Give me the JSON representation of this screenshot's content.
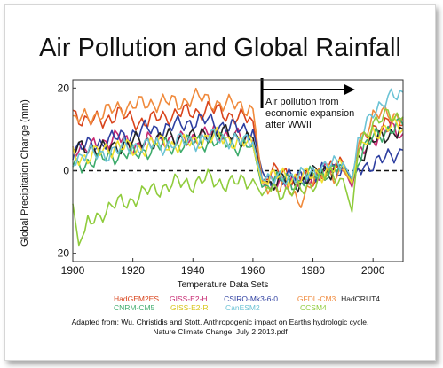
{
  "title": "Air Pollution and Global Rainfall",
  "chart_data": {
    "type": "line",
    "xlabel": "Temperature Data Sets",
    "ylabel": "Global Precipitation Change (mm)",
    "xlim": [
      1900,
      2010
    ],
    "ylim": [
      -22,
      22
    ],
    "xticks": [
      1900,
      1920,
      1940,
      1960,
      1980,
      2000
    ],
    "yticks": [
      -20,
      0,
      20
    ],
    "zero_line": "dashed",
    "legend_position": "bottom",
    "annotation": {
      "text_lines": [
        "Air pollution from",
        "economic expansion",
        "after WWII"
      ],
      "start_year": 1963,
      "end_year": 1994
    },
    "series": [
      {
        "name": "HadGEM2ES",
        "color": "#d9441c",
        "x": [
          1900,
          1905,
          1910,
          1915,
          1920,
          1925,
          1930,
          1935,
          1940,
          1945,
          1950,
          1955,
          1960,
          1963,
          1965,
          1970,
          1975,
          1980,
          1985,
          1990,
          1993,
          1995,
          2000,
          2005,
          2010
        ],
        "y": [
          14,
          12,
          12,
          14,
          12,
          12,
          13,
          14,
          14,
          15,
          14,
          13,
          12,
          -3,
          -1,
          0,
          -2,
          -2,
          0,
          2,
          -3,
          5,
          10,
          12,
          11
        ]
      },
      {
        "name": "GISS-E2-H",
        "color": "#c62870",
        "x": [
          1900,
          1905,
          1910,
          1915,
          1920,
          1925,
          1930,
          1935,
          1940,
          1945,
          1950,
          1955,
          1960,
          1963,
          1965,
          1970,
          1975,
          1980,
          1985,
          1990,
          1993,
          1995,
          2000,
          2005,
          2010
        ],
        "y": [
          6,
          5,
          7,
          8,
          6,
          7,
          8,
          7,
          8,
          9,
          9,
          8,
          7,
          -3,
          -4,
          -2,
          -3,
          -1,
          0,
          1,
          -4,
          3,
          8,
          10,
          9
        ]
      },
      {
        "name": "CSIRO-Mk3-6-0",
        "color": "#2e3fa0",
        "x": [
          1900,
          1905,
          1910,
          1915,
          1920,
          1925,
          1930,
          1935,
          1940,
          1945,
          1950,
          1955,
          1960,
          1963,
          1965,
          1970,
          1975,
          1980,
          1985,
          1990,
          1993,
          1995,
          2000,
          2005,
          2010
        ],
        "y": [
          5,
          6,
          7,
          8,
          9,
          10,
          10,
          11,
          12,
          12,
          11,
          10,
          10,
          0,
          -3,
          -1,
          -2,
          -1,
          0,
          1,
          -2,
          0,
          2,
          3,
          5
        ]
      },
      {
        "name": "GFDL-CM3",
        "color": "#f08a3c",
        "x": [
          1900,
          1905,
          1910,
          1915,
          1920,
          1925,
          1930,
          1935,
          1940,
          1945,
          1950,
          1955,
          1960,
          1963,
          1965,
          1970,
          1975,
          1980,
          1985,
          1990,
          1993,
          1995,
          2000,
          2005,
          2010
        ],
        "y": [
          12,
          13,
          14,
          15,
          16,
          16,
          17,
          16,
          18,
          17,
          16,
          16,
          15,
          -2,
          -4,
          -3,
          -8,
          -2,
          -1,
          0,
          -3,
          7,
          13,
          14,
          13
        ]
      },
      {
        "name": "HadCRUT4",
        "color": "#222222",
        "x": [
          1900,
          1905,
          1910,
          1915,
          1920,
          1925,
          1930,
          1935,
          1940,
          1945,
          1950,
          1955,
          1960,
          1963,
          1965,
          1970,
          1975,
          1980,
          1985,
          1990,
          1993,
          1995,
          2000,
          2005,
          2010
        ],
        "y": [
          5,
          6,
          5,
          6,
          7,
          7,
          8,
          8,
          8,
          9,
          9,
          8,
          8,
          -2,
          -3,
          -2,
          -3,
          -1,
          0,
          1,
          -3,
          3,
          7,
          9,
          10
        ]
      },
      {
        "name": "CNRM-CM5",
        "color": "#3dab6b",
        "x": [
          1900,
          1905,
          1910,
          1915,
          1920,
          1925,
          1930,
          1935,
          1940,
          1945,
          1950,
          1955,
          1960,
          1963,
          1965,
          1970,
          1975,
          1980,
          1985,
          1990,
          1993,
          1995,
          2000,
          2005,
          2010
        ],
        "y": [
          1,
          2,
          3,
          4,
          4,
          5,
          6,
          6,
          7,
          7,
          7,
          6,
          6,
          -4,
          -3,
          -2,
          -3,
          -1,
          0,
          1,
          -3,
          3,
          8,
          10,
          11
        ]
      },
      {
        "name": "GISS-E2-R",
        "color": "#f2e030",
        "x": [
          1900,
          1905,
          1910,
          1915,
          1920,
          1925,
          1930,
          1935,
          1940,
          1945,
          1950,
          1955,
          1960,
          1963,
          1965,
          1970,
          1975,
          1980,
          1985,
          1990,
          1993,
          1995,
          2000,
          2005,
          2010
        ],
        "y": [
          4,
          3,
          5,
          6,
          5,
          6,
          7,
          6,
          7,
          8,
          8,
          7,
          6,
          -3,
          -2,
          -1,
          -2,
          -1,
          0,
          1,
          -3,
          4,
          9,
          11,
          10
        ]
      },
      {
        "name": "CanESM2",
        "color": "#6cc3d5",
        "x": [
          1900,
          1905,
          1910,
          1915,
          1920,
          1925,
          1930,
          1935,
          1940,
          1945,
          1950,
          1955,
          1960,
          1963,
          1965,
          1970,
          1975,
          1980,
          1985,
          1990,
          1993,
          1995,
          2000,
          2005,
          2010
        ],
        "y": [
          3,
          4,
          4,
          5,
          6,
          6,
          6,
          7,
          7,
          8,
          8,
          7,
          7,
          -2,
          -3,
          -1,
          -2,
          0,
          1,
          2,
          -2,
          6,
          15,
          17,
          19
        ]
      },
      {
        "name": "CCSM4",
        "color": "#8fcc3c",
        "x": [
          1900,
          1902,
          1905,
          1910,
          1915,
          1920,
          1925,
          1930,
          1935,
          1940,
          1945,
          1950,
          1955,
          1960,
          1963,
          1965,
          1970,
          1975,
          1980,
          1985,
          1990,
          1993,
          1995,
          2000,
          2005,
          2010
        ],
        "y": [
          -8,
          -18,
          -13,
          -10,
          -8,
          -7,
          -5,
          -4,
          -3,
          -3,
          -2,
          -3,
          -3,
          -2,
          -6,
          -4,
          -5,
          -5,
          -3,
          -1,
          -2,
          -10,
          5,
          12,
          13,
          13
        ]
      }
    ]
  },
  "source": {
    "line1": "Adapted from: Wu, Christidis and Stott, Anthropogenic impact on Earths hydrologic cycle,",
    "line2": "Nature Climate Change, July 2 2013.pdf"
  }
}
